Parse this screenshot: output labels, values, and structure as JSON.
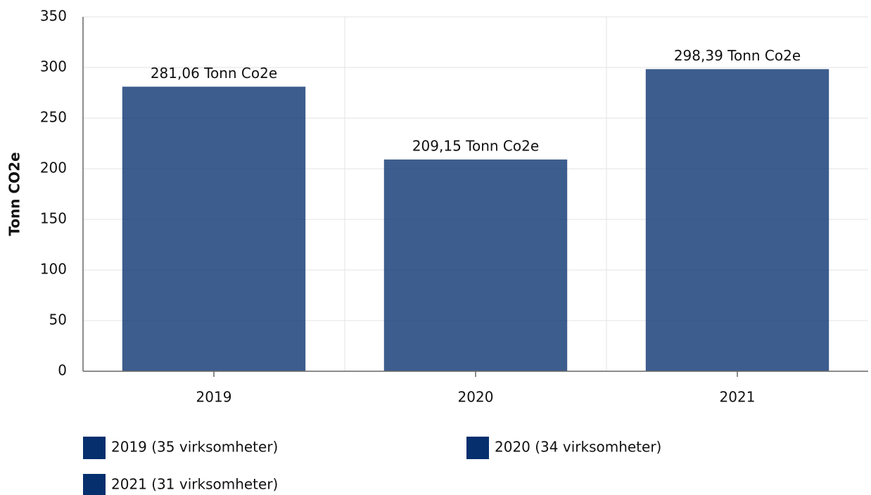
{
  "chart_data": {
    "type": "bar",
    "y_axis_label": "Tonn CO2e",
    "categories": [
      "2019",
      "2020",
      "2021"
    ],
    "values": [
      281.06,
      209.15,
      298.39
    ],
    "value_labels": [
      "281,06 Tonn Co2e",
      "209,15 Tonn Co2e",
      "298,39 Tonn Co2e"
    ],
    "color": "#062f6e",
    "legend": [
      "2019 (35 virksomheter)",
      "2020 (34 virksomheter)",
      "2021 (31 virksomheter)"
    ],
    "ylim": [
      0,
      350
    ],
    "yticks": [
      0,
      50,
      100,
      150,
      200,
      250,
      300,
      350
    ],
    "grid": true
  }
}
